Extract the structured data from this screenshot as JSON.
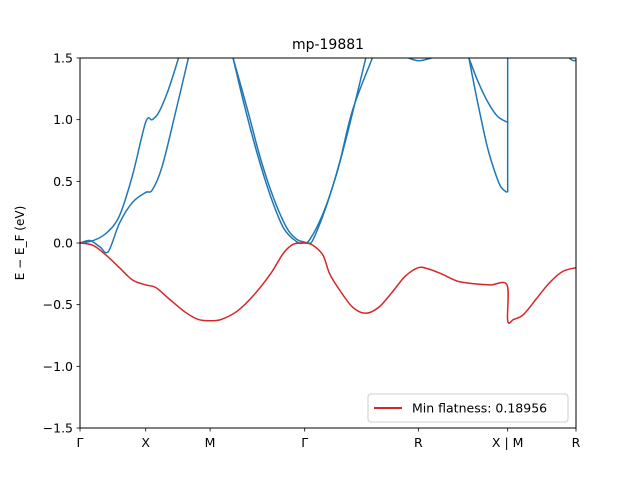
{
  "chart_data": {
    "type": "line",
    "title": "mp-19881",
    "ylabel": "E − E_F (eV)",
    "ylim": [
      -1.5,
      1.5
    ],
    "yticks": [
      -1.5,
      -1.0,
      -0.5,
      0.0,
      0.5,
      1.0,
      1.5
    ],
    "ytick_labels": [
      "−1.5",
      "−1.0",
      "−0.5",
      "0.0",
      "0.5",
      "1.0",
      "1.5"
    ],
    "xlim": [
      0,
      7.55
    ],
    "kpath_ticks": [
      {
        "x": 0.0,
        "label": "Γ"
      },
      {
        "x": 1.0,
        "label": "X"
      },
      {
        "x": 1.98,
        "label": "M"
      },
      {
        "x": 3.42,
        "label": "Γ"
      },
      {
        "x": 5.15,
        "label": "R"
      },
      {
        "x": 6.51,
        "label": "X | M"
      },
      {
        "x": 7.55,
        "label": "R"
      }
    ],
    "legend": {
      "label": "Min flatness: 0.18956",
      "placement": "lower-right"
    },
    "colors": {
      "bands": "#1f77b4",
      "highlight": "#d62728"
    },
    "series": [
      {
        "role": "band",
        "points": [
          [
            0,
            0
          ],
          [
            0.2,
            0.02
          ],
          [
            0.4,
            0.08
          ],
          [
            0.6,
            0.22
          ],
          [
            0.8,
            0.55
          ],
          [
            1.0,
            0.98
          ],
          [
            1.1,
            1.0
          ],
          [
            1.2,
            1.06
          ],
          [
            1.35,
            1.25
          ],
          [
            1.5,
            1.5
          ]
        ]
      },
      {
        "role": "band",
        "points": [
          [
            0,
            0
          ],
          [
            0.15,
            0.02
          ],
          [
            0.3,
            -0.03
          ],
          [
            0.43,
            -0.07
          ],
          [
            0.6,
            0.16
          ],
          [
            0.8,
            0.33
          ],
          [
            1.0,
            0.41
          ],
          [
            1.1,
            0.43
          ],
          [
            1.25,
            0.62
          ],
          [
            1.45,
            1.05
          ],
          [
            1.65,
            1.5
          ]
        ]
      },
      {
        "role": "band",
        "points": [
          [
            2.33,
            1.5
          ],
          [
            2.5,
            1.12
          ],
          [
            2.7,
            0.72
          ],
          [
            2.9,
            0.38
          ],
          [
            3.1,
            0.12
          ],
          [
            3.3,
            0.01
          ],
          [
            3.4,
            0.0
          ],
          [
            3.5,
            0.03
          ],
          [
            3.7,
            0.24
          ],
          [
            3.9,
            0.55
          ],
          [
            4.1,
            0.95
          ],
          [
            4.35,
            1.5
          ]
        ]
      },
      {
        "role": "band",
        "points": [
          [
            2.33,
            1.5
          ],
          [
            2.55,
            1.08
          ],
          [
            2.75,
            0.68
          ],
          [
            2.95,
            0.36
          ],
          [
            3.15,
            0.12
          ],
          [
            3.3,
            0.03
          ],
          [
            3.4,
            0.01
          ],
          [
            3.48,
            0.0
          ],
          [
            3.55,
            0.03
          ],
          [
            3.75,
            0.3
          ],
          [
            3.95,
            0.65
          ],
          [
            4.15,
            1.08
          ],
          [
            4.45,
            1.5
          ]
        ]
      },
      {
        "role": "band",
        "points": [
          [
            5.0,
            1.5
          ],
          [
            5.12,
            1.48
          ],
          [
            5.2,
            1.48
          ],
          [
            5.35,
            1.5
          ]
        ]
      },
      {
        "role": "band",
        "points": [
          [
            5.92,
            1.5
          ],
          [
            6.05,
            1.32
          ],
          [
            6.2,
            1.15
          ],
          [
            6.35,
            1.03
          ],
          [
            6.5,
            0.98
          ]
        ]
      },
      {
        "role": "band",
        "points": [
          [
            5.92,
            1.5
          ],
          [
            6.0,
            1.28
          ],
          [
            6.1,
            1.02
          ],
          [
            6.2,
            0.78
          ],
          [
            6.3,
            0.6
          ],
          [
            6.4,
            0.46
          ],
          [
            6.5,
            0.41
          ]
        ]
      },
      {
        "role": "band",
        "points": [
          [
            6.51,
            0.41
          ],
          [
            6.51,
            1.5
          ]
        ]
      },
      {
        "role": "band",
        "points": [
          [
            7.45,
            1.5
          ],
          [
            7.5,
            1.48
          ],
          [
            7.55,
            1.48
          ]
        ]
      },
      {
        "role": "highlight",
        "name": "Min flatness: 0.18956",
        "points": [
          [
            0,
            0
          ],
          [
            0.2,
            -0.02
          ],
          [
            0.4,
            -0.1
          ],
          [
            0.6,
            -0.2
          ],
          [
            0.8,
            -0.3
          ],
          [
            1.0,
            -0.34
          ],
          [
            1.15,
            -0.36
          ],
          [
            1.35,
            -0.45
          ],
          [
            1.6,
            -0.56
          ],
          [
            1.8,
            -0.62
          ],
          [
            1.98,
            -0.63
          ],
          [
            2.15,
            -0.62
          ],
          [
            2.4,
            -0.55
          ],
          [
            2.65,
            -0.42
          ],
          [
            2.9,
            -0.25
          ],
          [
            3.1,
            -0.08
          ],
          [
            3.25,
            -0.01
          ],
          [
            3.42,
            0.0
          ],
          [
            3.55,
            -0.02
          ],
          [
            3.7,
            -0.1
          ],
          [
            3.8,
            -0.25
          ],
          [
            3.95,
            -0.38
          ],
          [
            4.15,
            -0.52
          ],
          [
            4.35,
            -0.57
          ],
          [
            4.55,
            -0.52
          ],
          [
            4.75,
            -0.4
          ],
          [
            4.95,
            -0.27
          ],
          [
            5.15,
            -0.2
          ],
          [
            5.3,
            -0.21
          ],
          [
            5.5,
            -0.25
          ],
          [
            5.75,
            -0.31
          ],
          [
            6.0,
            -0.33
          ],
          [
            6.25,
            -0.34
          ],
          [
            6.5,
            -0.34
          ],
          [
            6.51,
            -0.63
          ],
          [
            6.6,
            -0.62
          ],
          [
            6.75,
            -0.58
          ],
          [
            6.95,
            -0.45
          ],
          [
            7.15,
            -0.32
          ],
          [
            7.35,
            -0.23
          ],
          [
            7.55,
            -0.2
          ]
        ]
      }
    ]
  }
}
